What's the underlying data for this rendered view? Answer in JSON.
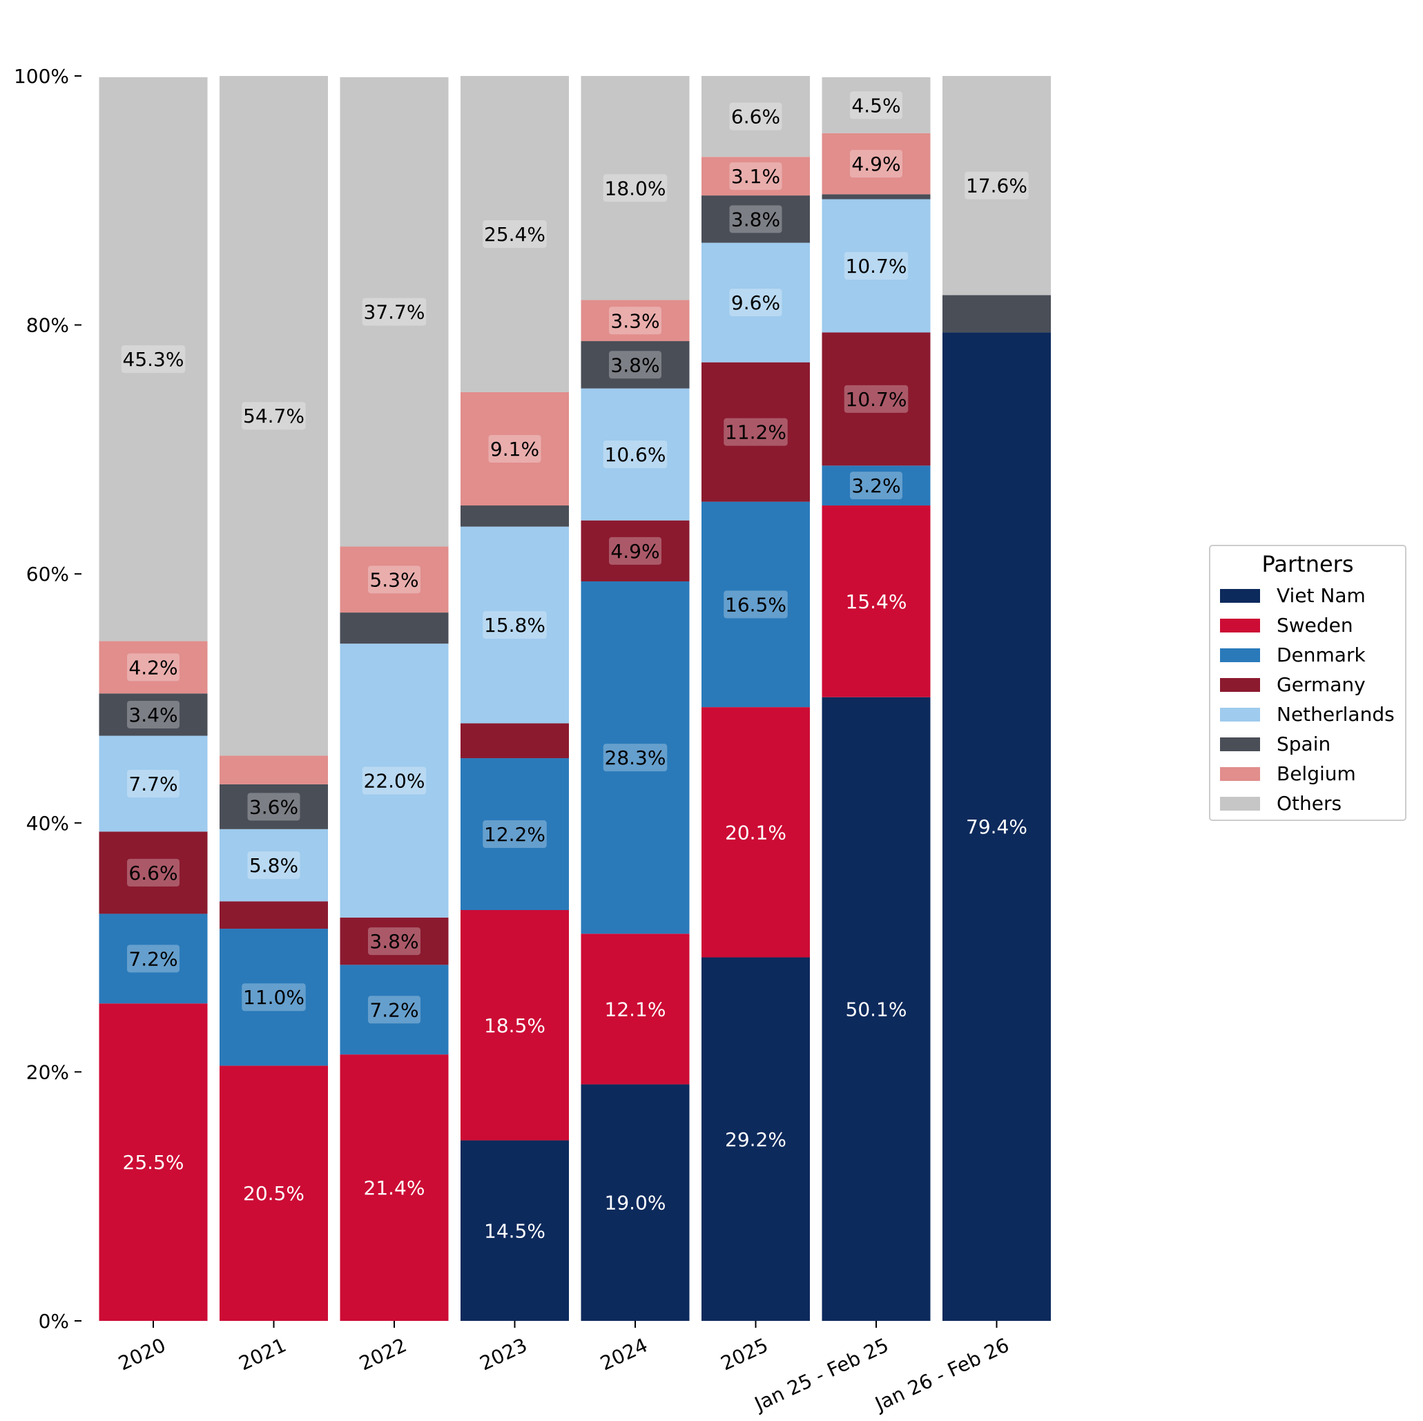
{
  "chart_data": {
    "type": "bar",
    "stacked": true,
    "categories": [
      "2020",
      "2021",
      "2022",
      "2023",
      "2024",
      "2025",
      "Jan 25 - Feb 25",
      "Jan 26 - Feb 26"
    ],
    "ylim": [
      0,
      100
    ],
    "ytick_values": [
      0,
      20,
      40,
      60,
      80,
      100
    ],
    "ytick_labels": [
      "0%",
      "20%",
      "40%",
      "60%",
      "80%",
      "100%"
    ],
    "grid": false,
    "legend_placement": "right",
    "legend_title": "Partners",
    "series": [
      {
        "name": "Viet Nam",
        "color": "#0d2a5c",
        "label_color": "#ffffff",
        "label_box": false,
        "values": [
          0,
          0,
          0,
          14.5,
          19.0,
          29.2,
          50.1,
          79.4
        ],
        "labels": [
          "",
          "",
          "",
          "14.5%",
          "19.0%",
          "29.2%",
          "50.1%",
          "79.4%"
        ]
      },
      {
        "name": "Sweden",
        "color": "#cc0c35",
        "label_color": "#ffffff",
        "label_box": false,
        "values": [
          25.5,
          20.5,
          21.4,
          18.5,
          12.1,
          20.1,
          15.4,
          0
        ],
        "labels": [
          "25.5%",
          "20.5%",
          "21.4%",
          "18.5%",
          "12.1%",
          "20.1%",
          "15.4%",
          ""
        ]
      },
      {
        "name": "Denmark",
        "color": "#2a7aba",
        "label_color": "#000000",
        "label_box": true,
        "values": [
          7.2,
          11.0,
          7.2,
          12.2,
          28.3,
          16.5,
          3.2,
          0
        ],
        "labels": [
          "7.2%",
          "11.0%",
          "7.2%",
          "12.2%",
          "28.3%",
          "16.5%",
          "3.2%",
          ""
        ]
      },
      {
        "name": "Germany",
        "color": "#8b1a2f",
        "label_color": "#000000",
        "label_box": true,
        "values": [
          6.6,
          2.2,
          3.8,
          2.8,
          4.9,
          11.2,
          10.7,
          0
        ],
        "labels": [
          "6.6%",
          "",
          "3.8%",
          "",
          "4.9%",
          "11.2%",
          "10.7%",
          ""
        ]
      },
      {
        "name": "Netherlands",
        "color": "#9ecbee",
        "label_color": "#000000",
        "label_box": true,
        "values": [
          7.7,
          5.8,
          22.0,
          15.8,
          10.6,
          9.6,
          10.7,
          0
        ],
        "labels": [
          "7.7%",
          "5.8%",
          "22.0%",
          "15.8%",
          "10.6%",
          "9.6%",
          "10.7%",
          ""
        ]
      },
      {
        "name": "Spain",
        "color": "#4a4e57",
        "label_color": "#000000",
        "label_box": true,
        "values": [
          3.4,
          3.6,
          2.5,
          1.7,
          3.8,
          3.8,
          0.4,
          3.0
        ],
        "labels": [
          "3.4%",
          "3.6%",
          "",
          "",
          "3.8%",
          "3.8%",
          "",
          ""
        ]
      },
      {
        "name": "Belgium",
        "color": "#e18e8c",
        "label_color": "#000000",
        "label_box": true,
        "values": [
          4.2,
          2.3,
          5.3,
          9.1,
          3.3,
          3.1,
          4.9,
          0
        ],
        "labels": [
          "4.2%",
          "",
          "5.3%",
          "9.1%",
          "3.3%",
          "3.1%",
          "4.9%",
          ""
        ]
      },
      {
        "name": "Others",
        "color": "#c6c6c6",
        "label_color": "#000000",
        "label_box": true,
        "values": [
          45.3,
          54.7,
          37.7,
          25.4,
          18.0,
          6.6,
          4.5,
          17.6
        ],
        "labels": [
          "45.3%",
          "54.7%",
          "37.7%",
          "25.4%",
          "18.0%",
          "6.6%",
          "4.5%",
          "17.6%"
        ]
      }
    ]
  }
}
